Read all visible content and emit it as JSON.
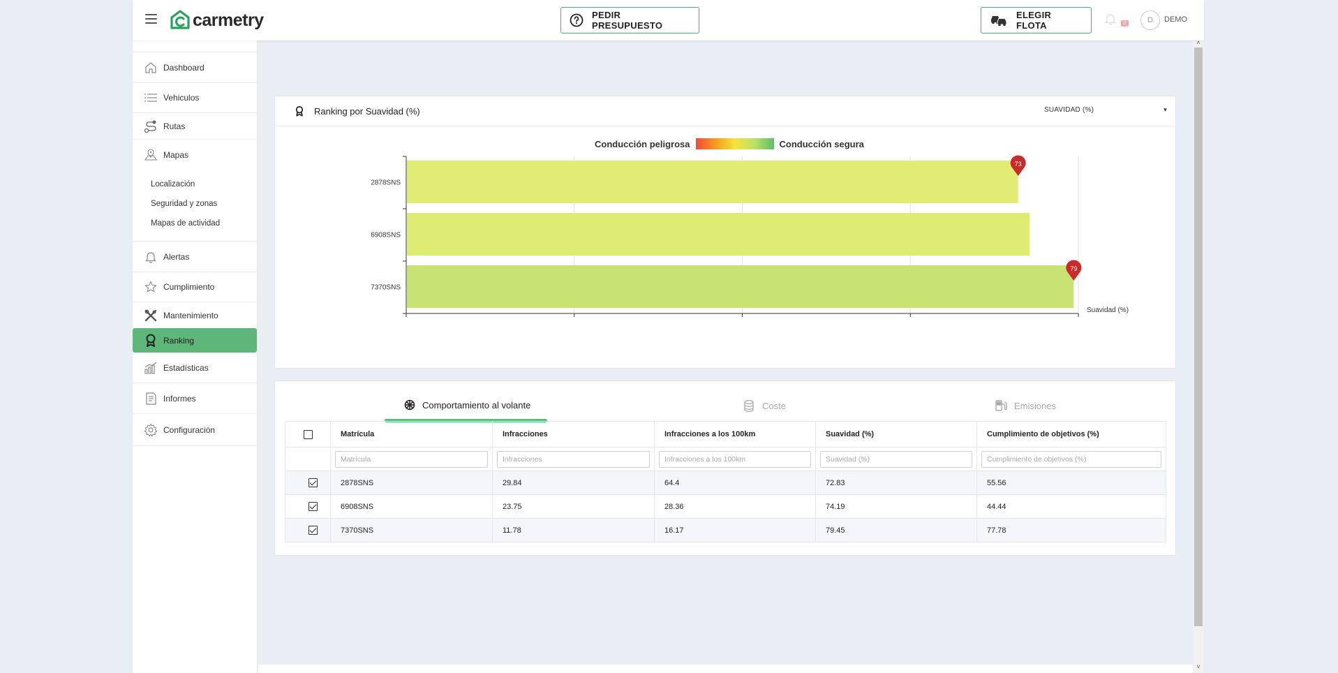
{
  "header": {
    "logo_text": "carmetry",
    "budget_label": "PEDIR PRESUPUESTO",
    "fleet_label": "ELEGIR FLOTA",
    "notification_count": "0",
    "avatar_initial": "D",
    "username": "DEMO"
  },
  "sidebar": {
    "items": [
      {
        "label": "Dashboard",
        "icon": "home-icon"
      },
      {
        "label": "Vehiculos",
        "icon": "list-icon"
      },
      {
        "label": "Rutas",
        "icon": "route-icon"
      },
      {
        "label": "Mapas",
        "icon": "map-icon"
      },
      {
        "label": "Alertas",
        "icon": "bell-icon"
      },
      {
        "label": "Cumplimiento",
        "icon": "star-icon"
      },
      {
        "label": "Mantenimiento",
        "icon": "tools-icon"
      },
      {
        "label": "Ranking",
        "icon": "award-icon"
      },
      {
        "label": "Estadísticas",
        "icon": "stats-icon"
      },
      {
        "label": "Informes",
        "icon": "report-icon"
      },
      {
        "label": "Configuración",
        "icon": "gear-icon"
      }
    ],
    "map_submenu": [
      "Localización",
      "Seguridad y zonas",
      "Mapas de actividad"
    ],
    "active": "Ranking"
  },
  "chart_card": {
    "title": "Ranking por Suavidad (%)",
    "metric_select": "SUAVIDAD (%)",
    "legend_left": "Conducción peligrosa",
    "legend_right": "Conducción segura"
  },
  "chart_data": {
    "type": "bar",
    "orientation": "horizontal",
    "categories": [
      "2878SNS",
      "6908SNS",
      "7370SNS"
    ],
    "values": [
      72.83,
      74.19,
      79.45
    ],
    "markers": [
      {
        "category": "2878SNS",
        "label": "73"
      },
      {
        "category": "7370SNS",
        "label": "79"
      }
    ],
    "xlabel": "Suavidad (%)",
    "xlim": [
      0,
      80
    ],
    "xticks": [
      0,
      20,
      40,
      60,
      80
    ],
    "grid": true,
    "bar_colors": [
      "#e1ec72",
      "#deec72",
      "#c9e274"
    ],
    "marker_color": "#c92a2a"
  },
  "tabs": [
    {
      "label": "Comportamiento al volante",
      "icon": "steering-wheel-icon",
      "active": true
    },
    {
      "label": "Coste",
      "icon": "coins-icon",
      "active": false
    },
    {
      "label": "Emisiones",
      "icon": "fuel-pump-icon",
      "active": false
    }
  ],
  "table": {
    "columns": [
      "Matrícula",
      "Infracciones",
      "Infracciones a los 100km",
      "Suavidad (%)",
      "Cumplimiento de objetivos (%)"
    ],
    "filters": [
      "Matrícula",
      "Infracciones",
      "Infracciones a los 100km",
      "Suavidad (%)",
      "Cumplimiento de objetivos (%)"
    ],
    "rows": [
      [
        "2878SNS",
        "29.84",
        "64.4",
        "72.83",
        "55.56"
      ],
      [
        "6908SNS",
        "23.75",
        "28.36",
        "74.19",
        "44.44"
      ],
      [
        "7370SNS",
        "11.78",
        "16.17",
        "79.45",
        "77.78"
      ]
    ]
  },
  "colors": {
    "accent": "#3fb37a",
    "active_menu": "#5fb67a",
    "tab_underline": "#3dcc77"
  }
}
